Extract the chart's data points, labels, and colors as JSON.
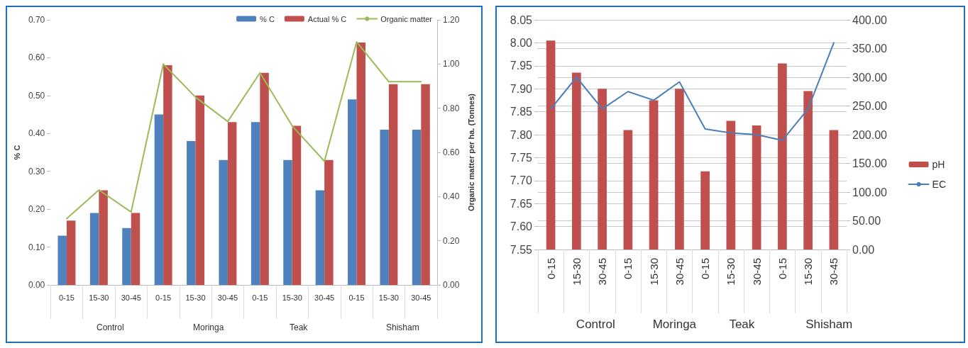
{
  "chart_data": [
    {
      "type": "bar",
      "ylabel": "% C",
      "y2label": "Organic matter per ha. (Tonnes)",
      "categories": [
        "0-15",
        "15-30",
        "30-45",
        "0-15",
        "15-30",
        "30-45",
        "0-15",
        "15-30",
        "30-45",
        "0-15",
        "15-30",
        "30-45"
      ],
      "series": [
        {
          "name": "% C",
          "color": "#4f81bd",
          "values": [
            0.13,
            0.19,
            0.15,
            0.45,
            0.38,
            0.33,
            0.43,
            0.33,
            0.25,
            0.49,
            0.41,
            0.41
          ]
        },
        {
          "name": "Actual % C",
          "color": "#c0504d",
          "values": [
            0.17,
            0.25,
            0.19,
            0.58,
            0.5,
            0.43,
            0.56,
            0.42,
            0.33,
            0.64,
            0.53,
            0.53
          ]
        },
        {
          "name": "Organic matter",
          "type": "line",
          "axis": "y2",
          "color": "#9bbb59",
          "values": [
            0.3,
            0.43,
            0.33,
            1.0,
            0.85,
            0.74,
            0.96,
            0.72,
            0.56,
            1.1,
            0.92,
            0.92
          ]
        }
      ],
      "ylim": [
        0,
        0.7
      ],
      "yticks": [
        {
          "value": 0,
          "label": "0.00"
        },
        {
          "value": 0.1,
          "label": "0.10"
        },
        {
          "value": 0.2,
          "label": "0.20"
        },
        {
          "value": 0.3,
          "label": "0.30"
        },
        {
          "value": 0.4,
          "label": "0.40"
        },
        {
          "value": 0.5,
          "label": "0.50"
        },
        {
          "value": 0.6,
          "label": "0.60"
        },
        {
          "value": 0.7,
          "label": "0.70"
        }
      ],
      "y2lim": [
        0,
        1.2
      ],
      "y2ticks": [
        {
          "value": 0,
          "label": "0.00"
        },
        {
          "value": 0.2,
          "label": "0.20"
        },
        {
          "value": 0.4,
          "label": "0.40"
        },
        {
          "value": 0.6,
          "label": "0.60"
        },
        {
          "value": 0.8,
          "label": "0.80"
        },
        {
          "value": 1,
          "label": "1.00"
        },
        {
          "value": 1.2,
          "label": "1.20"
        }
      ],
      "annotations": [
        "Control",
        "Moringa",
        "Teak",
        "Shisham"
      ],
      "grid": false,
      "legend": "top right",
      "marker": "none"
    },
    {
      "type": "bar",
      "categories": [
        "0-15",
        "15-30",
        "30-45",
        "0-15",
        "15-30",
        "30-45",
        "0-15",
        "15-30",
        "30-45",
        "0-15",
        "15-30",
        "30-45"
      ],
      "series": [
        {
          "name": "pH",
          "color": "#c0504d",
          "values": [
            8.005,
            7.935,
            7.9,
            7.81,
            7.875,
            7.9,
            7.72,
            7.83,
            7.82,
            7.955,
            7.895,
            7.81
          ]
        },
        {
          "name": "EC",
          "type": "line",
          "axis": "y2",
          "color": "#4a7ebb",
          "values": [
            245,
            300,
            245,
            275,
            260,
            292,
            210,
            203,
            200,
            190,
            245,
            360
          ]
        }
      ],
      "ylim": [
        7.55,
        8.05
      ],
      "yticks": [
        {
          "value": 7.55,
          "label": "7.55"
        },
        {
          "value": 7.6,
          "label": "7.60"
        },
        {
          "value": 7.65,
          "label": "7.65"
        },
        {
          "value": 7.7,
          "label": "7.70"
        },
        {
          "value": 7.75,
          "label": "7.75"
        },
        {
          "value": 7.8,
          "label": "7.80"
        },
        {
          "value": 7.85,
          "label": "7.85"
        },
        {
          "value": 7.9,
          "label": "7.90"
        },
        {
          "value": 7.95,
          "label": "7.95"
        },
        {
          "value": 8,
          "label": "8.00"
        },
        {
          "value": 8.05,
          "label": "8.05"
        }
      ],
      "y2lim": [
        0,
        400
      ],
      "y2ticks": [
        {
          "value": 0,
          "label": "0.00"
        },
        {
          "value": 50,
          "label": "50.00"
        },
        {
          "value": 100,
          "label": "100.00"
        },
        {
          "value": 150,
          "label": "150.00"
        },
        {
          "value": 200,
          "label": "200.00"
        },
        {
          "value": 250,
          "label": "250.00"
        },
        {
          "value": 300,
          "label": "300.00"
        },
        {
          "value": 350,
          "label": "350.00"
        },
        {
          "value": 400,
          "label": "400.00"
        }
      ],
      "annotations": [
        "Control",
        "Moringa",
        "Teak",
        "Shisham"
      ],
      "grid": "y",
      "legend": "right",
      "marker": "none"
    }
  ]
}
